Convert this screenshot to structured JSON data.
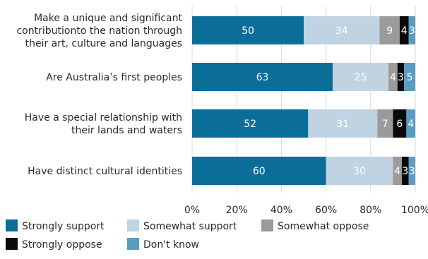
{
  "chart_data": {
    "type": "bar",
    "orientation": "horizontal",
    "stacked": true,
    "title": "",
    "xlabel": "",
    "ylabel": "",
    "xlim": [
      0,
      100
    ],
    "x_ticks": [
      "0%",
      "20%",
      "40%",
      "60%",
      "80%",
      "100%"
    ],
    "grid": true,
    "legend_position": "bottom",
    "categories": [
      [
        "Make a unique and significant",
        "contributionto the nation through",
        "their art, culture and languages"
      ],
      [
        "Are Australia’s first peoples"
      ],
      [
        "Have a special relationship with",
        "their lands and waters"
      ],
      [
        "Have distinct cultural identities"
      ]
    ],
    "series": [
      {
        "name": "Strongly support",
        "color": "#0b6e99",
        "label_color": "#ffffff",
        "values": [
          50,
          63,
          52,
          60
        ]
      },
      {
        "name": "Somewhat support",
        "color": "#bfd3e2",
        "label_color": "#ffffff",
        "values": [
          34,
          25,
          31,
          30
        ]
      },
      {
        "name": "Somewhat oppose",
        "color": "#9b9b9b",
        "label_color": "#ffffff",
        "values": [
          9,
          4,
          7,
          4
        ]
      },
      {
        "name": "Strongly oppose",
        "color": "#0a0a0a",
        "label_color": "#ffffff",
        "values": [
          4,
          3,
          6,
          3
        ]
      },
      {
        "name": "Don't know",
        "color": "#5b9dc2",
        "label_color": "#ffffff",
        "values": [
          3,
          5,
          4,
          3
        ]
      }
    ]
  }
}
